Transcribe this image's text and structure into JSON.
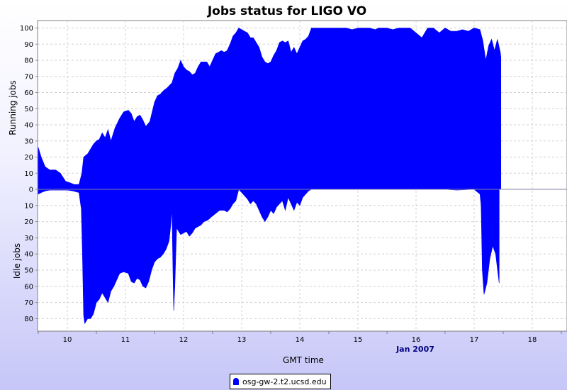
{
  "chart_data": {
    "type": "area",
    "title": "Jobs status for LIGO VO",
    "xlabel": "GMT time",
    "x_date_label": "Jan 2007",
    "x_tick_labels": [
      "10",
      "11",
      "12",
      "13",
      "14",
      "15",
      "16",
      "17",
      "18"
    ],
    "x_range_days": [
      9.45,
      18.3
    ],
    "top_panel": {
      "ylabel": "Running jobs",
      "ylim": [
        0,
        105
      ],
      "y_ticks": [
        0,
        10,
        20,
        30,
        40,
        50,
        60,
        70,
        80,
        90,
        100
      ]
    },
    "bottom_panel": {
      "ylabel": "Idle jobs",
      "ylim": [
        0,
        87
      ],
      "y_ticks": [
        0,
        10,
        20,
        30,
        40,
        50,
        60,
        70,
        80
      ]
    },
    "grid": true,
    "legend_position": "bottom-center",
    "series": [
      {
        "name": "osg-gw-2.t2.ucsd.edu",
        "color": "#0000ff",
        "running": [
          [
            9.5,
            26
          ],
          [
            9.55,
            20
          ],
          [
            9.62,
            14
          ],
          [
            9.7,
            12
          ],
          [
            9.8,
            12
          ],
          [
            9.88,
            10
          ],
          [
            9.97,
            5
          ],
          [
            10.05,
            4
          ],
          [
            10.12,
            3
          ],
          [
            10.2,
            3
          ],
          [
            10.25,
            10
          ],
          [
            10.28,
            20
          ],
          [
            10.35,
            22
          ],
          [
            10.45,
            28
          ],
          [
            10.5,
            30
          ],
          [
            10.55,
            31
          ],
          [
            10.6,
            35
          ],
          [
            10.65,
            32
          ],
          [
            10.7,
            37
          ],
          [
            10.75,
            30
          ],
          [
            10.82,
            38
          ],
          [
            10.9,
            44
          ],
          [
            10.97,
            48
          ],
          [
            11.05,
            49
          ],
          [
            11.1,
            47
          ],
          [
            11.15,
            42
          ],
          [
            11.2,
            45
          ],
          [
            11.25,
            46
          ],
          [
            11.3,
            43
          ],
          [
            11.35,
            39
          ],
          [
            11.42,
            42
          ],
          [
            11.5,
            54
          ],
          [
            11.55,
            58
          ],
          [
            11.6,
            59
          ],
          [
            11.65,
            61
          ],
          [
            11.72,
            63
          ],
          [
            11.8,
            66
          ],
          [
            11.85,
            72
          ],
          [
            11.9,
            75
          ],
          [
            11.95,
            80
          ],
          [
            12.0,
            76
          ],
          [
            12.05,
            74
          ],
          [
            12.1,
            73
          ],
          [
            12.15,
            71
          ],
          [
            12.2,
            72
          ],
          [
            12.25,
            76
          ],
          [
            12.3,
            79
          ],
          [
            12.35,
            79
          ],
          [
            12.4,
            79
          ],
          [
            12.45,
            76
          ],
          [
            12.5,
            80
          ],
          [
            12.55,
            84
          ],
          [
            12.6,
            85
          ],
          [
            12.65,
            86
          ],
          [
            12.7,
            85
          ],
          [
            12.75,
            86
          ],
          [
            12.8,
            90
          ],
          [
            12.85,
            95
          ],
          [
            12.9,
            97
          ],
          [
            12.95,
            100
          ],
          [
            13.0,
            99
          ],
          [
            13.05,
            98
          ],
          [
            13.1,
            97
          ],
          [
            13.15,
            94
          ],
          [
            13.2,
            94
          ],
          [
            13.25,
            91
          ],
          [
            13.3,
            88
          ],
          [
            13.35,
            82
          ],
          [
            13.4,
            79
          ],
          [
            13.45,
            78
          ],
          [
            13.5,
            79
          ],
          [
            13.55,
            83
          ],
          [
            13.6,
            86
          ],
          [
            13.65,
            91
          ],
          [
            13.7,
            92
          ],
          [
            13.75,
            91
          ],
          [
            13.8,
            92
          ],
          [
            13.85,
            85
          ],
          [
            13.9,
            88
          ],
          [
            13.95,
            84
          ],
          [
            14.0,
            88
          ],
          [
            14.05,
            92
          ],
          [
            14.1,
            93
          ],
          [
            14.15,
            95
          ],
          [
            14.2,
            100
          ],
          [
            14.3,
            100
          ],
          [
            14.5,
            100
          ],
          [
            14.7,
            100
          ],
          [
            14.8,
            100
          ],
          [
            14.9,
            99
          ],
          [
            15.0,
            100
          ],
          [
            15.05,
            100
          ],
          [
            15.2,
            100
          ],
          [
            15.3,
            99
          ],
          [
            15.35,
            100
          ],
          [
            15.5,
            100
          ],
          [
            15.6,
            99
          ],
          [
            15.7,
            100
          ],
          [
            15.8,
            100
          ],
          [
            15.9,
            100
          ],
          [
            16.0,
            97
          ],
          [
            16.1,
            94
          ],
          [
            16.2,
            100
          ],
          [
            16.3,
            100
          ],
          [
            16.4,
            97
          ],
          [
            16.5,
            100
          ],
          [
            16.6,
            98
          ],
          [
            16.7,
            98
          ],
          [
            16.8,
            99
          ],
          [
            16.9,
            98
          ],
          [
            17.0,
            100
          ],
          [
            17.1,
            99
          ],
          [
            17.15,
            92
          ],
          [
            17.2,
            80
          ],
          [
            17.25,
            89
          ],
          [
            17.3,
            93
          ],
          [
            17.35,
            86
          ],
          [
            17.4,
            93
          ],
          [
            17.45,
            85
          ],
          [
            17.46,
            82
          ]
        ],
        "idle": [
          [
            9.5,
            3
          ],
          [
            9.55,
            2
          ],
          [
            9.62,
            1
          ],
          [
            9.7,
            0.5
          ],
          [
            9.8,
            0.5
          ],
          [
            9.9,
            0.5
          ],
          [
            10.0,
            0.5
          ],
          [
            10.1,
            1
          ],
          [
            10.2,
            2
          ],
          [
            10.24,
            12
          ],
          [
            10.26,
            40
          ],
          [
            10.28,
            78
          ],
          [
            10.3,
            83
          ],
          [
            10.35,
            80
          ],
          [
            10.4,
            80
          ],
          [
            10.45,
            77
          ],
          [
            10.5,
            70
          ],
          [
            10.55,
            68
          ],
          [
            10.6,
            64
          ],
          [
            10.65,
            67
          ],
          [
            10.7,
            70
          ],
          [
            10.75,
            63
          ],
          [
            10.8,
            60
          ],
          [
            10.85,
            56
          ],
          [
            10.9,
            52
          ],
          [
            10.97,
            51
          ],
          [
            11.05,
            52
          ],
          [
            11.1,
            57
          ],
          [
            11.15,
            58
          ],
          [
            11.2,
            55
          ],
          [
            11.25,
            56
          ],
          [
            11.3,
            60
          ],
          [
            11.35,
            61
          ],
          [
            11.4,
            57
          ],
          [
            11.45,
            50
          ],
          [
            11.5,
            45
          ],
          [
            11.55,
            43
          ],
          [
            11.6,
            42
          ],
          [
            11.65,
            40
          ],
          [
            11.7,
            37
          ],
          [
            11.75,
            32
          ],
          [
            11.78,
            22
          ],
          [
            11.8,
            12
          ],
          [
            11.82,
            55
          ],
          [
            11.83,
            75
          ],
          [
            11.85,
            60
          ],
          [
            11.88,
            24
          ],
          [
            11.95,
            28
          ],
          [
            12.05,
            26
          ],
          [
            12.1,
            29
          ],
          [
            12.15,
            27
          ],
          [
            12.2,
            24
          ],
          [
            12.3,
            22
          ],
          [
            12.35,
            20
          ],
          [
            12.42,
            19
          ],
          [
            12.48,
            17
          ],
          [
            12.55,
            15
          ],
          [
            12.62,
            13
          ],
          [
            12.7,
            13
          ],
          [
            12.75,
            14
          ],
          [
            12.8,
            12
          ],
          [
            12.85,
            9
          ],
          [
            12.9,
            7
          ],
          [
            12.95,
            0
          ],
          [
            13.0,
            2
          ],
          [
            13.05,
            4
          ],
          [
            13.1,
            6
          ],
          [
            13.15,
            9
          ],
          [
            13.2,
            7
          ],
          [
            13.25,
            9
          ],
          [
            13.3,
            13
          ],
          [
            13.35,
            17
          ],
          [
            13.4,
            20
          ],
          [
            13.45,
            17
          ],
          [
            13.5,
            13
          ],
          [
            13.55,
            15
          ],
          [
            13.6,
            11
          ],
          [
            13.65,
            9
          ],
          [
            13.7,
            7
          ],
          [
            13.75,
            13
          ],
          [
            13.8,
            5
          ],
          [
            13.85,
            9
          ],
          [
            13.9,
            13
          ],
          [
            13.95,
            8
          ],
          [
            14.0,
            10
          ],
          [
            14.05,
            5
          ],
          [
            14.1,
            3
          ],
          [
            14.15,
            1
          ],
          [
            14.2,
            0
          ],
          [
            14.5,
            0
          ],
          [
            15.0,
            0
          ],
          [
            15.5,
            0
          ],
          [
            16.0,
            0
          ],
          [
            16.5,
            0
          ],
          [
            16.7,
            0.5
          ],
          [
            17.0,
            0
          ],
          [
            17.1,
            3
          ],
          [
            17.12,
            10
          ],
          [
            17.14,
            50
          ],
          [
            17.17,
            65
          ],
          [
            17.22,
            58
          ],
          [
            17.27,
            43
          ],
          [
            17.32,
            35
          ],
          [
            17.37,
            40
          ],
          [
            17.41,
            52
          ],
          [
            17.43,
            58
          ]
        ]
      }
    ]
  }
}
